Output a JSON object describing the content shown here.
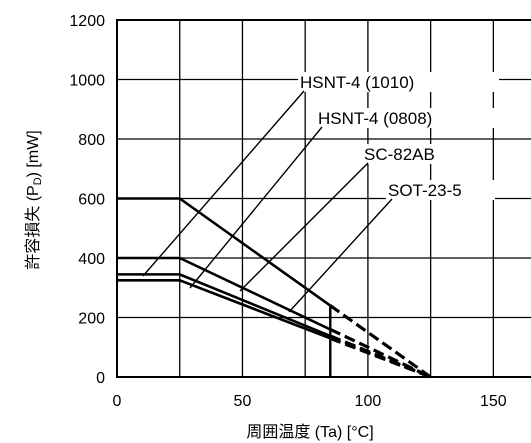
{
  "chart_data": {
    "type": "line",
    "xlabel": "周囲温度 (Ta) [°C]",
    "ylabel": "許容損失 (P_D) [mW]",
    "xlim": [
      0,
      165
    ],
    "ylim": [
      0,
      1200
    ],
    "x_ticks": [
      "0",
      "50",
      "100",
      "150"
    ],
    "y_ticks": [
      "0",
      "200",
      "400",
      "600",
      "800",
      "1000",
      "1200"
    ],
    "grid": true,
    "series": [
      {
        "name": "HSNT-4 (1010)",
        "x": [
          0,
          25,
          85
        ],
        "y": [
          600,
          600,
          240
        ]
      },
      {
        "name": "HSNT-4 (0808)",
        "x": [
          0,
          25,
          85
        ],
        "y": [
          400,
          400,
          160
        ]
      },
      {
        "name": "SC-82AB",
        "x": [
          0,
          25,
          85
        ],
        "y": [
          345,
          345,
          138
        ]
      },
      {
        "name": "SOT-23-5",
        "x": [
          0,
          25,
          85
        ],
        "y": [
          325,
          325,
          130
        ]
      }
    ],
    "derating_to": [
      125,
      0
    ],
    "vline_x": 85,
    "ylabel_parts": {
      "main": "許容損失 (P",
      "sub": "D",
      "tail": ") [mW]"
    }
  }
}
